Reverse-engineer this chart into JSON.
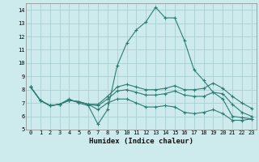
{
  "xlabel": "Humidex (Indice chaleur)",
  "x": [
    0,
    1,
    2,
    3,
    4,
    5,
    6,
    7,
    8,
    9,
    10,
    11,
    12,
    13,
    14,
    15,
    16,
    17,
    18,
    19,
    20,
    21,
    22,
    23
  ],
  "lines": [
    [
      8.2,
      7.2,
      6.8,
      6.9,
      7.3,
      7.0,
      6.8,
      5.4,
      6.5,
      9.8,
      11.5,
      12.5,
      13.1,
      14.2,
      13.4,
      13.4,
      11.7,
      9.5,
      8.7,
      7.8,
      7.3,
      6.0,
      5.9,
      5.8
    ],
    [
      8.2,
      7.2,
      6.8,
      6.9,
      7.2,
      7.1,
      6.9,
      6.9,
      7.5,
      8.2,
      8.4,
      8.2,
      8.0,
      8.0,
      8.1,
      8.3,
      8.0,
      8.0,
      8.1,
      8.5,
      8.1,
      7.5,
      7.0,
      6.6
    ],
    [
      8.2,
      7.2,
      6.8,
      6.9,
      7.2,
      7.1,
      6.9,
      6.8,
      7.3,
      7.9,
      8.0,
      7.8,
      7.6,
      7.6,
      7.7,
      7.9,
      7.6,
      7.5,
      7.5,
      7.8,
      7.7,
      6.9,
      6.3,
      6.0
    ],
    [
      8.2,
      7.2,
      6.8,
      6.9,
      7.2,
      7.1,
      6.9,
      6.5,
      7.0,
      7.3,
      7.3,
      7.0,
      6.7,
      6.7,
      6.8,
      6.7,
      6.3,
      6.2,
      6.3,
      6.5,
      6.2,
      5.7,
      5.7,
      5.8
    ]
  ],
  "line_color": "#2e7d74",
  "bg_color": "#cdeaec",
  "grid_color": "#aacfd4",
  "ylim": [
    5,
    14.5
  ],
  "xlim": [
    -0.5,
    23.5
  ],
  "yticks": [
    5,
    6,
    7,
    8,
    9,
    10,
    11,
    12,
    13,
    14
  ],
  "xticks": [
    0,
    1,
    2,
    3,
    4,
    5,
    6,
    7,
    8,
    9,
    10,
    11,
    12,
    13,
    14,
    15,
    16,
    17,
    18,
    19,
    20,
    21,
    22,
    23
  ],
  "tick_fontsize": 5.0,
  "xlabel_fontsize": 6.5
}
